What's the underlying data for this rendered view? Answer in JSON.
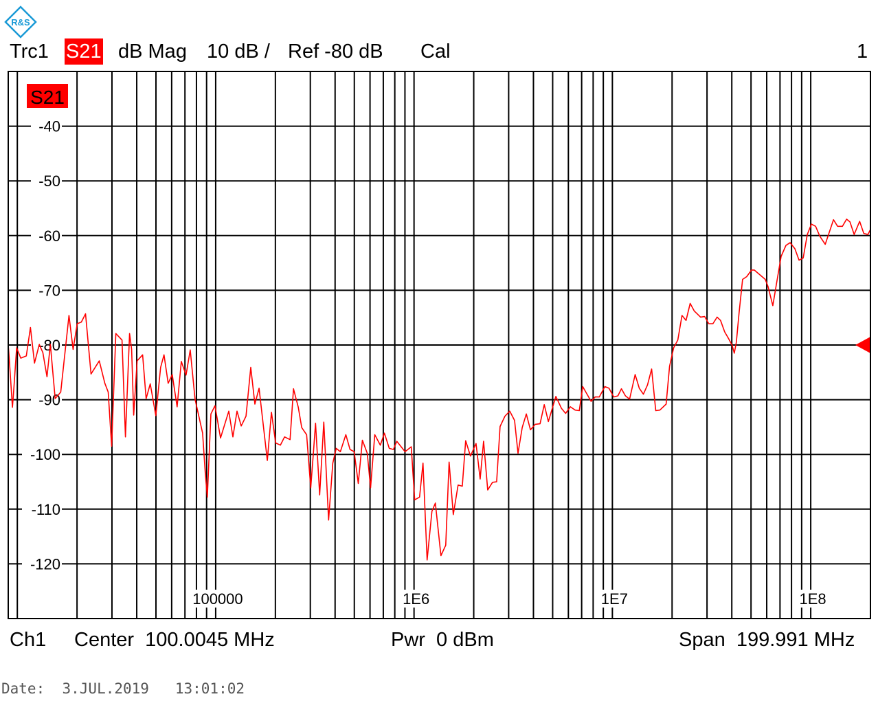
{
  "logo": {
    "text": "R&S",
    "color": "#1a9ad6"
  },
  "header": {
    "trace": "Trc1",
    "param": "S21",
    "format": "dB Mag",
    "scale": "10 dB /",
    "ref": "Ref -80 dB",
    "cal": "Cal",
    "channel_index": "1"
  },
  "trace_tag": "S21",
  "footer": {
    "channel": "Ch1",
    "center": "Center  100.0045 MHz",
    "power": "Pwr  0 dBm",
    "span": "Span  199.991 MHz"
  },
  "date": "Date:  3.JUL.2019   13:01:02",
  "colors": {
    "trace": "#ff0000",
    "grid": "#000000",
    "tag_bg": "#ff0000"
  },
  "chart_data": {
    "type": "line",
    "x_scale": "log",
    "xlim": [
      9000,
      200000000
    ],
    "ylim": [
      -130,
      -30
    ],
    "grid": true,
    "reference_level": -80,
    "y_ticks": [
      -40,
      -50,
      -60,
      -70,
      -80,
      -90,
      -100,
      -110,
      -120
    ],
    "y_tick_labels": [
      "-40",
      "-50",
      "-60",
      "-70",
      "-80",
      "-90",
      "-100",
      "-110",
      "-120"
    ],
    "x_ticks": [
      100000,
      1000000,
      10000000,
      100000000
    ],
    "x_tick_labels": [
      "100000",
      "1E6",
      "1E7",
      "1E8"
    ],
    "series": [
      {
        "x": [
          9000,
          9160,
          9450,
          9610,
          9920,
          10410,
          11100,
          11640,
          12210,
          12910,
          13450,
          14110,
          14680,
          15520,
          16550,
          18210,
          19110,
          20050,
          21030,
          22070,
          23520,
          25890,
          27610,
          28730,
          29900,
          31370,
          33720,
          35090,
          36810,
          37710,
          38620,
          40190,
          42840,
          44590,
          46780,
          49900,
          52760,
          54900,
          57600,
          60400,
          63900,
          67100,
          70900,
          74400,
          78700,
          85900,
          88700,
          90800,
          94600,
          99200,
          105800,
          116400,
          122100,
          128100,
          134500,
          142200,
          150300,
          157700,
          165500,
          182100,
          191100,
          200500,
          212000,
          222400,
          237100,
          246800,
          261000,
          271600,
          287300,
          301400,
          311200,
          318800,
          334400,
          350900,
          371000,
          389400,
          405300,
          425100,
          453300,
          475600,
          499000,
          523500,
          549000,
          581000,
          604000,
          634000,
          676000,
          709000,
          750000,
          787000,
          819000,
          901000,
          968000,
          1008000,
          1066000,
          1110000,
          1164000,
          1231000,
          1281000,
          1366000,
          1445000,
          1503000,
          1577000,
          1668000,
          1751000,
          1821000,
          1925000,
          2054000,
          2154000,
          2243000,
          2352000,
          2488000,
          2610000,
          2716000,
          2873000,
          3038000,
          3213000,
          3344000,
          3509000,
          3681000,
          3862000,
          4084000,
          4319000,
          4533000,
          4756000,
          5190000,
          5540000,
          5810000,
          6140000,
          6490000,
          6810000,
          7090000,
          7810000,
          8190000,
          8590000,
          9160000,
          9610000,
          10160000,
          10660000,
          11100000,
          11640000,
          12210000,
          13020000,
          13660000,
          14330000,
          15030000,
          15770000,
          16550000,
          17360000,
          18660000,
          19420000,
          20370000,
          21380000,
          22430000,
          23520000,
          24680000,
          25890000,
          27820000,
          29190000,
          30620000,
          32130000,
          33720000,
          35090000,
          36810000,
          38620000,
          40190000,
          41170000,
          42170000,
          43540000,
          45330000,
          47560000,
          50300000,
          51900000,
          59000000,
          60900000,
          64400000,
          67100000,
          70900000,
          75000000,
          78700000,
          83200000,
          87300000,
          91600000,
          96100000,
          100800000,
          105800000,
          111000000,
          118300000,
          130200000,
          136600000,
          144500000,
          151600000,
          157700000,
          165500000,
          176400000,
          185100000,
          194200000,
          200000000
        ],
        "y": [
          -79.9,
          -83.9,
          -91.4,
          -87.9,
          -80.5,
          -82.4,
          -82.0,
          -76.8,
          -83.3,
          -79.9,
          -81.4,
          -85.8,
          -79.9,
          -89.8,
          -88.6,
          -74.6,
          -80.8,
          -76.1,
          -75.8,
          -74.3,
          -85.3,
          -82.9,
          -87.0,
          -88.6,
          -98.5,
          -77.9,
          -79.1,
          -96.8,
          -77.9,
          -80.8,
          -92.8,
          -82.9,
          -81.8,
          -89.8,
          -87.1,
          -92.9,
          -84.1,
          -81.8,
          -87.0,
          -85.4,
          -91.3,
          -83.0,
          -85.5,
          -80.9,
          -89.9,
          -96.1,
          -103.6,
          -107.8,
          -92.6,
          -91.1,
          -97.0,
          -92.1,
          -96.8,
          -92.1,
          -94.8,
          -93.0,
          -84.1,
          -90.8,
          -87.9,
          -101.1,
          -92.3,
          -97.9,
          -98.3,
          -96.8,
          -97.3,
          -88.0,
          -91.4,
          -95.1,
          -96.4,
          -106.1,
          -99.5,
          -94.3,
          -107.4,
          -94.1,
          -112.0,
          -101.6,
          -98.9,
          -99.5,
          -96.4,
          -99.1,
          -99.5,
          -105.3,
          -97.4,
          -99.8,
          -106.1,
          -96.4,
          -98.3,
          -96.1,
          -98.9,
          -99.1,
          -97.6,
          -99.5,
          -98.6,
          -108.3,
          -107.8,
          -101.6,
          -119.3,
          -110.4,
          -108.9,
          -118.5,
          -116.6,
          -101.4,
          -111.0,
          -105.6,
          -105.8,
          -97.5,
          -100.3,
          -98.0,
          -104.5,
          -97.6,
          -106.5,
          -105.1,
          -105.0,
          -94.9,
          -93.0,
          -92.1,
          -93.8,
          -99.8,
          -95.1,
          -92.6,
          -95.5,
          -94.5,
          -94.4,
          -90.9,
          -94.0,
          -89.4,
          -91.6,
          -92.5,
          -91.3,
          -91.9,
          -92.0,
          -87.6,
          -90.3,
          -89.5,
          -89.5,
          -87.6,
          -87.9,
          -89.5,
          -89.3,
          -88.0,
          -89.3,
          -89.9,
          -85.4,
          -87.9,
          -89.0,
          -87.3,
          -84.4,
          -92.0,
          -91.9,
          -90.8,
          -83.9,
          -80.5,
          -79.1,
          -74.6,
          -75.5,
          -72.4,
          -73.8,
          -74.9,
          -74.8,
          -76.1,
          -76.1,
          -74.9,
          -75.5,
          -77.6,
          -78.9,
          -80.1,
          -81.5,
          -79.5,
          -74.1,
          -68.0,
          -67.5,
          -66.3,
          -66.3,
          -68.0,
          -69.3,
          -72.8,
          -68.9,
          -63.8,
          -61.8,
          -61.3,
          -62.4,
          -64.5,
          -64.1,
          -59.8,
          -57.9,
          -58.3,
          -60.1,
          -61.6,
          -57.1,
          -58.3,
          -58.3,
          -57.0,
          -57.5,
          -59.8,
          -57.4,
          -59.6,
          -59.8,
          -58.9
        ]
      }
    ]
  }
}
